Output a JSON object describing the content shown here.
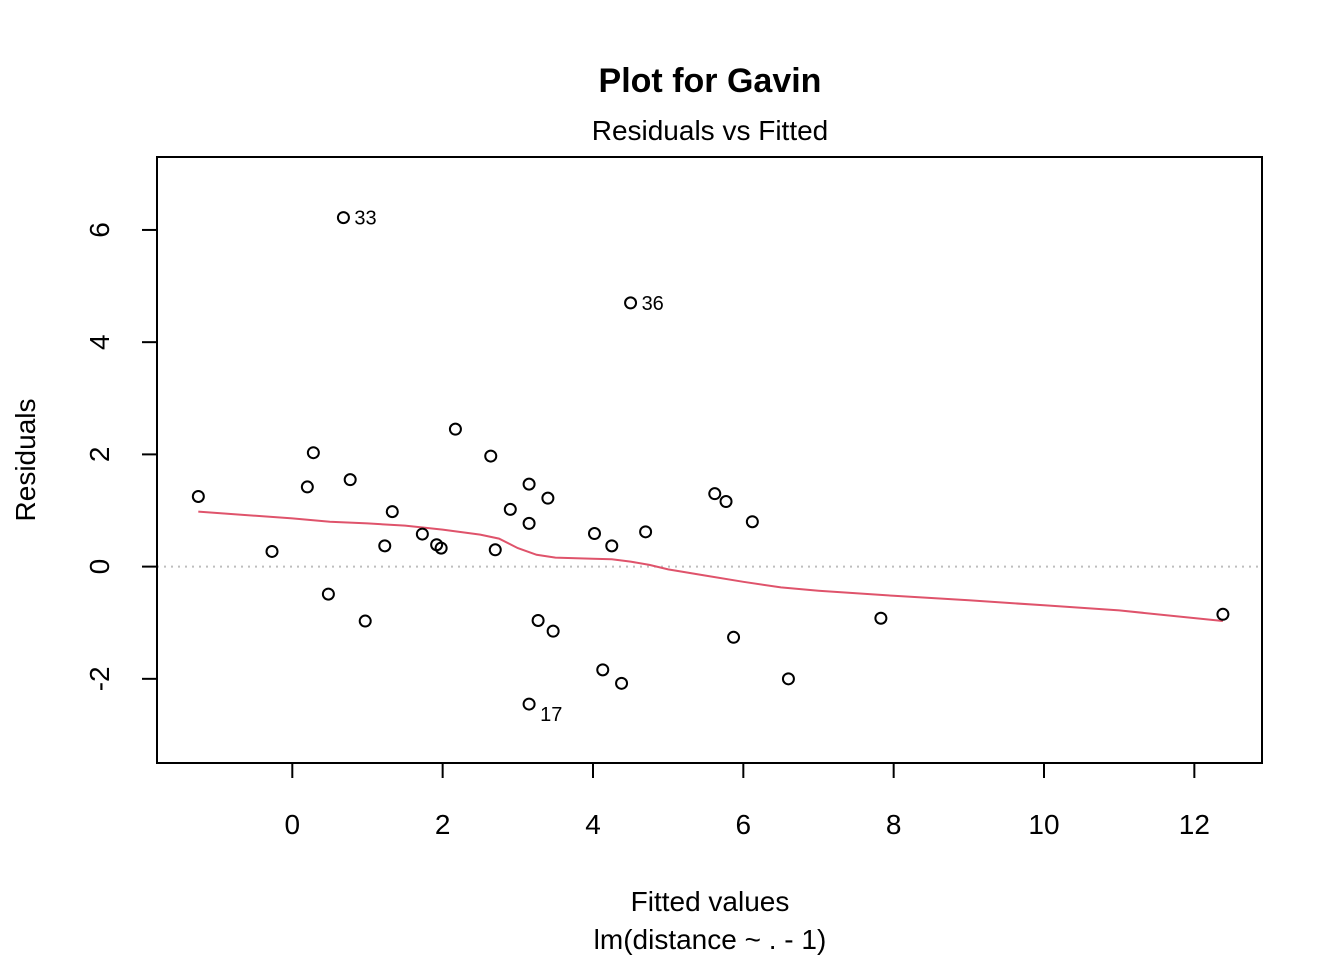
{
  "chart_data": {
    "type": "scatter",
    "title": "Plot for Gavin",
    "subtitle": "Residuals vs Fitted",
    "xlabel": "Fitted values",
    "xlabel2": "lm(distance ~ . - 1)",
    "ylabel": "Residuals",
    "xlim": [
      -1.8,
      12.9
    ],
    "ylim": [
      -3.5,
      7.3
    ],
    "x_ticks": [
      0,
      2,
      4,
      6,
      8,
      10,
      12
    ],
    "y_ticks": [
      -2,
      0,
      2,
      4,
      6
    ],
    "grid": false,
    "reference_line_y": 0,
    "colors": {
      "points": "#000000",
      "smooth": "#DF536B",
      "reference": "#BEBEBE",
      "frame": "#000000"
    },
    "points": [
      {
        "x": 0.68,
        "y": 6.22,
        "label": "33"
      },
      {
        "x": 4.5,
        "y": 4.7,
        "label": "36"
      },
      {
        "x": 3.15,
        "y": -2.45,
        "label": "17"
      },
      {
        "x": -1.25,
        "y": 1.25
      },
      {
        "x": -0.27,
        "y": 0.27
      },
      {
        "x": 0.2,
        "y": 1.42
      },
      {
        "x": 0.28,
        "y": 2.03
      },
      {
        "x": 0.48,
        "y": -0.49
      },
      {
        "x": 0.77,
        "y": 1.55
      },
      {
        "x": 0.97,
        "y": -0.97
      },
      {
        "x": 1.23,
        "y": 0.37
      },
      {
        "x": 1.33,
        "y": 0.98
      },
      {
        "x": 1.73,
        "y": 0.58
      },
      {
        "x": 1.92,
        "y": 0.39
      },
      {
        "x": 1.98,
        "y": 0.33
      },
      {
        "x": 2.17,
        "y": 2.45
      },
      {
        "x": 2.64,
        "y": 1.97
      },
      {
        "x": 2.7,
        "y": 0.3
      },
      {
        "x": 2.9,
        "y": 1.02
      },
      {
        "x": 3.15,
        "y": 1.47
      },
      {
        "x": 3.15,
        "y": 0.77
      },
      {
        "x": 3.27,
        "y": -0.96
      },
      {
        "x": 3.4,
        "y": 1.22
      },
      {
        "x": 3.47,
        "y": -1.15
      },
      {
        "x": 4.02,
        "y": 0.59
      },
      {
        "x": 4.13,
        "y": -1.84
      },
      {
        "x": 4.25,
        "y": 0.37
      },
      {
        "x": 4.38,
        "y": -2.08
      },
      {
        "x": 4.7,
        "y": 0.62
      },
      {
        "x": 5.62,
        "y": 1.3
      },
      {
        "x": 5.77,
        "y": 1.16
      },
      {
        "x": 5.87,
        "y": -1.26
      },
      {
        "x": 6.12,
        "y": 0.8
      },
      {
        "x": 6.6,
        "y": -2.0
      },
      {
        "x": 7.83,
        "y": -0.92
      },
      {
        "x": 12.38,
        "y": -0.85
      }
    ],
    "smooth_line": [
      [
        -1.25,
        0.98
      ],
      [
        0.0,
        0.86
      ],
      [
        0.5,
        0.8
      ],
      [
        1.0,
        0.77
      ],
      [
        1.5,
        0.73
      ],
      [
        2.0,
        0.66
      ],
      [
        2.5,
        0.57
      ],
      [
        2.75,
        0.5
      ],
      [
        3.0,
        0.33
      ],
      [
        3.25,
        0.21
      ],
      [
        3.5,
        0.16
      ],
      [
        4.0,
        0.14
      ],
      [
        4.25,
        0.13
      ],
      [
        4.5,
        0.09
      ],
      [
        4.75,
        0.03
      ],
      [
        5.0,
        -0.05
      ],
      [
        5.5,
        -0.16
      ],
      [
        6.0,
        -0.27
      ],
      [
        6.5,
        -0.37
      ],
      [
        7.0,
        -0.43
      ],
      [
        8.0,
        -0.52
      ],
      [
        9.0,
        -0.6
      ],
      [
        10.0,
        -0.69
      ],
      [
        11.0,
        -0.78
      ],
      [
        12.38,
        -0.97
      ]
    ]
  }
}
